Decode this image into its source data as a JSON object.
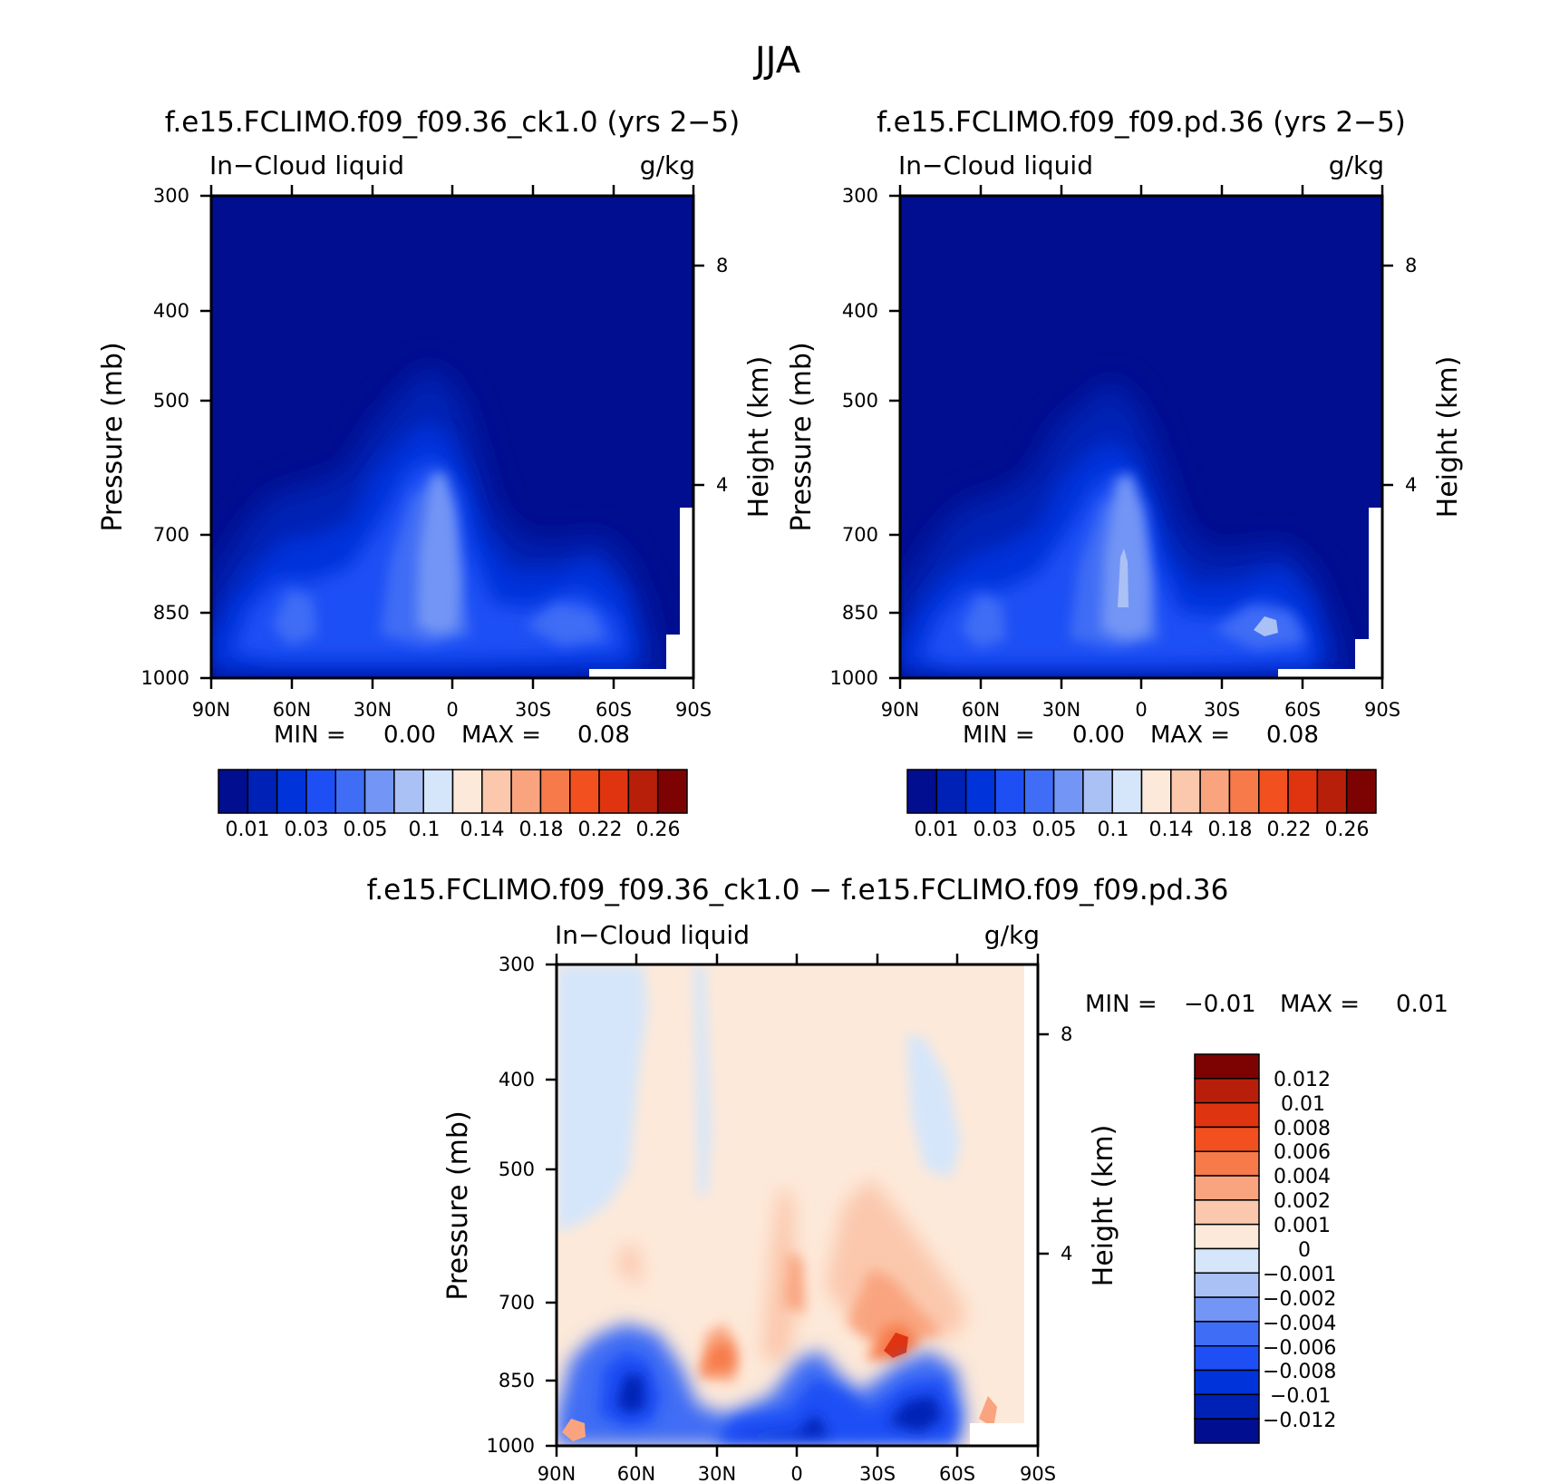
{
  "figure_title": "JJA",
  "chart_data": [
    {
      "type": "heatmap",
      "title": "f.e15.FCLIMO.f09_f09.36_ck1.0 (yrs 2−5)",
      "left_label": "In−Cloud liquid",
      "right_label": "g/kg",
      "ylabel": "Pressure (mb)",
      "y2label": "Height (km)",
      "x_ticks": [
        "90N",
        "60N",
        "30N",
        "0",
        "30S",
        "60S",
        "90S"
      ],
      "y_ticks": [
        "300",
        "400",
        "500",
        "700",
        "850",
        "1000"
      ],
      "y2_ticks": [
        "8",
        "4"
      ],
      "ylim": [
        1000,
        300
      ],
      "xlim": [
        90,
        -90
      ],
      "min_label": "MIN =",
      "min_value": "0.00",
      "max_label": "MAX =",
      "max_value": "0.08",
      "colorbar_labels": [
        "0.01",
        "0.03",
        "0.05",
        "0.1",
        "0.14",
        "0.18",
        "0.22",
        "0.26"
      ],
      "colorbar_colors": [
        "#000e8f",
        "#0021b5",
        "#0033da",
        "#1e4ff5",
        "#3f6df5",
        "#7395f5",
        "#aac1f5",
        "#d5e6fa",
        "#fde9d9",
        "#fbc8ad",
        "#f9a47f",
        "#f77a4a",
        "#f2501f",
        "#e03410",
        "#b81f0b",
        "#7d0303"
      ],
      "blobs": [
        {
          "lat": -7,
          "p": 640,
          "value": 0.05
        },
        {
          "lat": 62,
          "p": 760,
          "value": 0.03
        },
        {
          "lat": 45,
          "p": 650,
          "value": 0.02
        },
        {
          "lat": -40,
          "p": 800,
          "value": 0.04
        },
        {
          "lat": 40,
          "p": 880,
          "value": 0.03
        },
        {
          "lat": 10,
          "p": 870,
          "value": 0.03
        }
      ]
    },
    {
      "type": "heatmap",
      "title": "f.e15.FCLIMO.f09_f09.pd.36 (yrs 2−5)",
      "left_label": "In−Cloud liquid",
      "right_label": "g/kg",
      "ylabel": "Pressure (mb)",
      "y2label": "Height (km)",
      "x_ticks": [
        "90N",
        "60N",
        "30N",
        "0",
        "30S",
        "60S",
        "90S"
      ],
      "y_ticks": [
        "300",
        "400",
        "500",
        "700",
        "850",
        "1000"
      ],
      "y2_ticks": [
        "8",
        "4"
      ],
      "ylim": [
        1000,
        300
      ],
      "xlim": [
        90,
        -90
      ],
      "min_label": "MIN =",
      "min_value": "0.00",
      "max_label": "MAX =",
      "max_value": "0.08",
      "colorbar_labels": [
        "0.01",
        "0.03",
        "0.05",
        "0.1",
        "0.14",
        "0.18",
        "0.22",
        "0.26"
      ],
      "colorbar_colors": [
        "#000e8f",
        "#0021b5",
        "#0033da",
        "#1e4ff5",
        "#3f6df5",
        "#7395f5",
        "#aac1f5",
        "#d5e6fa",
        "#fde9d9",
        "#fbc8ad",
        "#f9a47f",
        "#f77a4a",
        "#f2501f",
        "#e03410",
        "#b81f0b",
        "#7d0303"
      ],
      "blobs": [
        {
          "lat": -7,
          "p": 640,
          "value": 0.06
        },
        {
          "lat": 62,
          "p": 760,
          "value": 0.03
        },
        {
          "lat": 45,
          "p": 660,
          "value": 0.02
        },
        {
          "lat": -45,
          "p": 810,
          "value": 0.05
        },
        {
          "lat": 40,
          "p": 880,
          "value": 0.03
        },
        {
          "lat": 10,
          "p": 870,
          "value": 0.03
        }
      ]
    },
    {
      "type": "heatmap",
      "title": "f.e15.FCLIMO.f09_f09.36_ck1.0 − f.e15.FCLIMO.f09_f09.pd.36",
      "left_label": "In−Cloud liquid",
      "right_label": "g/kg",
      "ylabel": "Pressure (mb)",
      "y2label": "Height (km)",
      "x_ticks": [
        "90N",
        "60N",
        "30N",
        "0",
        "30S",
        "60S",
        "90S"
      ],
      "y_ticks": [
        "300",
        "400",
        "500",
        "700",
        "850",
        "1000"
      ],
      "y2_ticks": [
        "8",
        "4"
      ],
      "ylim": [
        1000,
        300
      ],
      "xlim": [
        90,
        -90
      ],
      "min_label": "MIN =",
      "min_value": "−0.01",
      "max_label": "MAX =",
      "max_value": "0.01",
      "colorbar_labels": [
        "0.012",
        "0.01",
        "0.008",
        "0.006",
        "0.004",
        "0.002",
        "0.001",
        "0",
        "−0.001",
        "−0.002",
        "−0.004",
        "−0.006",
        "−0.008",
        "−0.01",
        "−0.012"
      ],
      "colorbar_colors": [
        "#7d0303",
        "#b81f0b",
        "#e03410",
        "#f2501f",
        "#f77a4a",
        "#f9a47f",
        "#fbc8ad",
        "#fde9d9",
        "#d5e6fa",
        "#aac1f5",
        "#7395f5",
        "#3f6df5",
        "#1e4ff5",
        "#0033da",
        "#0021b5",
        "#000e8f"
      ],
      "blobs": [
        {
          "lat": -38,
          "p": 800,
          "value": 0.008
        },
        {
          "lat": 25,
          "p": 790,
          "value": 0.006
        },
        {
          "lat": -5,
          "p": 620,
          "value": 0.004
        },
        {
          "lat": 60,
          "p": 880,
          "value": -0.008
        },
        {
          "lat": -45,
          "p": 900,
          "value": -0.012
        },
        {
          "lat": 10,
          "p": 910,
          "value": -0.01
        },
        {
          "lat": -45,
          "p": 430,
          "value": -0.001
        },
        {
          "lat": 78,
          "p": 420,
          "value": -0.001
        }
      ]
    }
  ]
}
